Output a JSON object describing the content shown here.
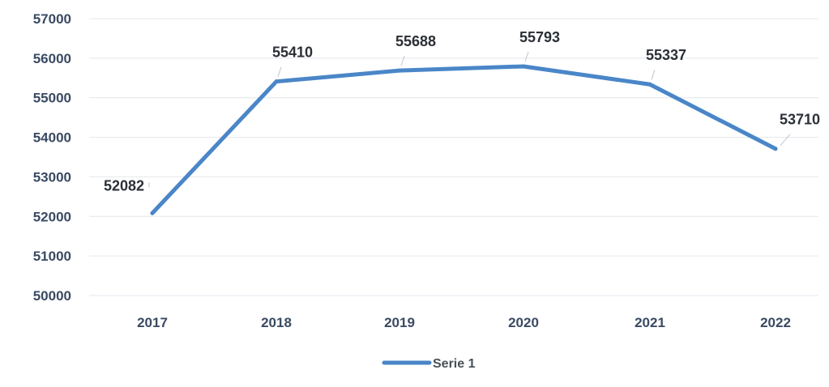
{
  "chart_data": {
    "type": "line",
    "title": "",
    "xlabel": "",
    "ylabel": "",
    "categories": [
      "2017",
      "2018",
      "2019",
      "2020",
      "2021",
      "2022"
    ],
    "series": [
      {
        "name": "Serie 1",
        "values": [
          52082,
          55410,
          55688,
          55793,
          55337,
          53710
        ],
        "color": "#4a86c8"
      }
    ],
    "ylim": [
      50000,
      57000
    ],
    "yticks": [
      50000,
      51000,
      52000,
      53000,
      54000,
      55000,
      56000,
      57000
    ],
    "data_labels": true,
    "grid": true,
    "legend_position": "bottom"
  }
}
